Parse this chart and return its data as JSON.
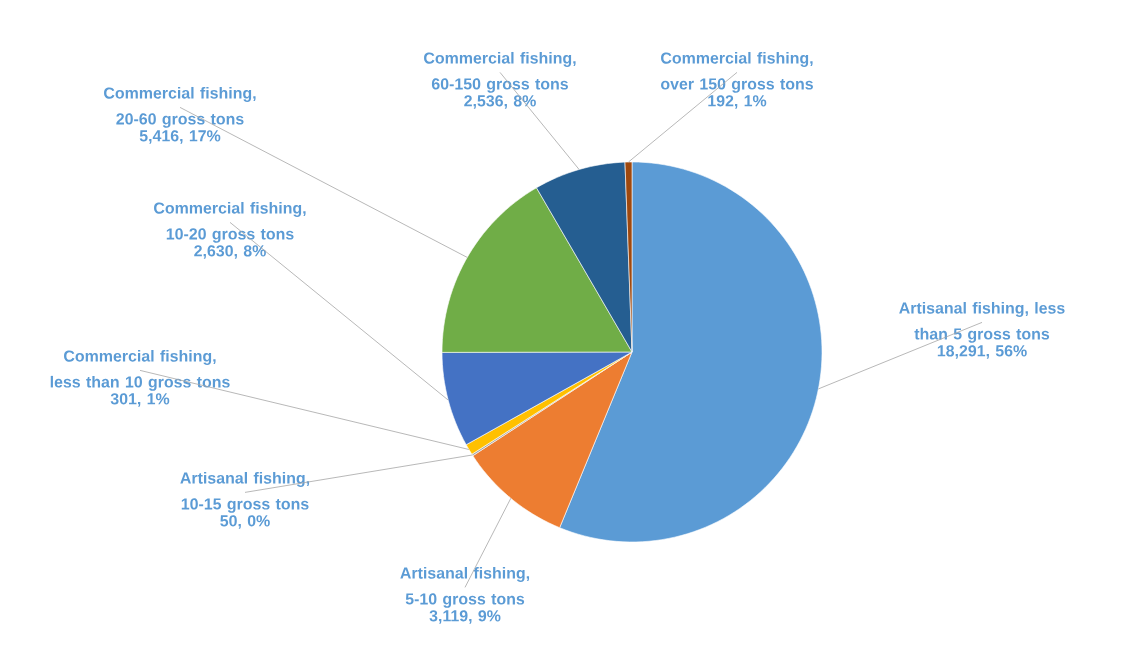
{
  "chart_data": {
    "type": "pie",
    "categories": [
      "Artisanal fishing, less than 5 gross tons",
      "Artisanal fishing, 5-10 gross tons",
      "Artisanal fishing, 10-15 gross tons",
      "Commercial fishing, less than 10 gross tons",
      "Commercial fishing, 10-20 gross tons",
      "Commercial fishing, 20-60 gross tons",
      "Commercial fishing, 60-150 gross tons",
      "Commercial fishing, over 150 gross tons"
    ],
    "values": [
      18291,
      3119,
      50,
      301,
      2630,
      5416,
      2536,
      192
    ],
    "colors": [
      "#5b9bd5",
      "#ed7d31",
      "#a5a5a5",
      "#ffc000",
      "#4472c4",
      "#70ad47",
      "#255e91",
      "#9e480e"
    ],
    "value_labels": [
      "18,291, 56%",
      "3,119, 9%",
      "50, 0%",
      "301, 1%",
      "2,630, 8%",
      "5,416, 17%",
      "2,536, 8%",
      "192, 1%"
    ]
  }
}
